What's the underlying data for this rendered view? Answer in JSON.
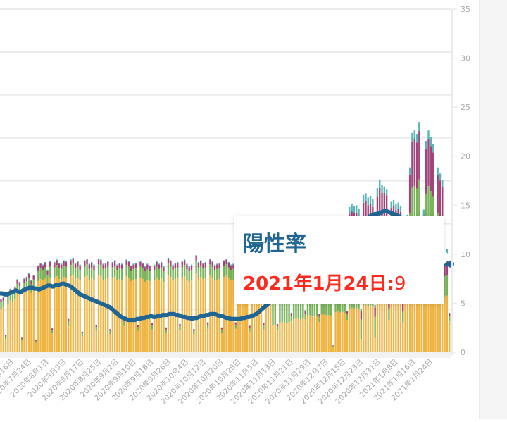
{
  "chart_data": {
    "type": "bar+line",
    "title": "",
    "xlabel": "",
    "ylabel_right": "",
    "right_axis": {
      "ticks": [
        0,
        5,
        10,
        15,
        20,
        25,
        30,
        35
      ],
      "ylim": [
        0,
        35
      ]
    },
    "colors": {
      "bar_series": [
        "#f0b443",
        "#7ab35a",
        "#a0457a",
        "#58b5b8"
      ],
      "line": "#1f6694",
      "grid": "#ebebeb",
      "axis_text": "#aaaaaa"
    },
    "x_start": "2020-07-12",
    "x_end": "2021-01-24",
    "x_tick_labels": [
      "2020年7月16日",
      "2020年7月24日",
      "2020年8月1日",
      "2020年8月9日",
      "2020年8月17日",
      "2020年8月25日",
      "2020年9月2日",
      "2020年9月10日",
      "2020年9月18日",
      "2020年9月26日",
      "2020年10月4日",
      "2020年10月12日",
      "2020年10月20日",
      "2020年10月28日",
      "2020年11月5日",
      "2020年11月13日",
      "2020年11月21日",
      "2020年11月29日",
      "2020年12月7日",
      "2020年12月15日",
      "2020年12月23日",
      "2020年12月31日",
      "2021年1月8日",
      "2021年1月16日",
      "2021年1月24日"
    ],
    "bar_totals_relative": [
      6.2,
      6.4,
      2.0,
      6.8,
      7.4,
      7.2,
      7.6,
      8.5,
      8.2,
      1.7,
      8.6,
      8.8,
      9.2,
      8.4,
      9.0,
      1.4,
      10.1,
      10.4,
      10.2,
      10.5,
      9.6,
      10.6,
      2.8,
      10.5,
      10.8,
      10.4,
      10.3,
      10.7,
      10.6,
      3.9,
      10.8,
      11.0,
      10.4,
      10.6,
      10.2,
      2.4,
      10.7,
      10.9,
      10.3,
      10.5,
      10.2,
      3.2,
      10.9,
      10.8,
      10.3,
      10.4,
      10.6,
      2.7,
      10.5,
      10.7,
      10.2,
      10.4,
      10.3,
      3.9,
      10.8,
      10.6,
      10.1,
      10.3,
      10.4,
      3.2,
      10.6,
      10.4,
      10.0,
      10.3,
      10.1,
      3.4,
      10.2,
      10.6,
      10.3,
      10.5,
      10.0,
      2.9,
      11.0,
      10.7,
      10.2,
      10.4,
      10.5,
      3.3,
      10.6,
      10.8,
      10.3,
      10.0,
      10.2,
      2.7,
      11.3,
      10.5,
      10.7,
      10.4,
      10.5,
      3.5,
      10.9,
      10.6,
      10.2,
      10.3,
      10.4,
      2.9,
      10.7,
      10.9,
      10.5,
      10.2,
      10.3,
      3.5,
      10.5,
      10.6,
      10.2,
      10.4,
      10.1,
      3.1,
      10.4,
      10.5,
      10.2,
      10.0,
      10.3,
      3.4,
      10.8,
      10.6,
      10.2,
      10.5,
      10.4,
      3.3,
      11.4,
      11.8,
      11.6,
      11.2,
      11.7,
      4.6,
      12.8,
      13.2,
      13.0,
      12.6,
      13.4,
      4.9,
      14.1,
      14.4,
      13.9,
      14.2,
      13.8,
      4.5,
      14.6,
      14.9,
      14.3,
      14.4,
      14.2,
      0.8,
      15.5,
      15.9,
      15.4,
      15.6,
      15.2,
      4.8,
      16.9,
      17.3,
      17.0,
      17.1,
      16.7,
      5.1,
      18.3,
      18.5,
      18.0,
      18.2,
      17.8,
      5.5,
      19.1,
      20.1,
      19.5,
      19.3,
      19.0,
      6.8,
      17.5,
      17.7,
      17.2,
      17.4,
      17.0,
      6.3,
      15.5,
      16.0,
      21.5,
      25.5,
      25.8,
      25.4,
      26.8,
      12.0,
      16.6,
      24.6,
      25.8,
      25.0,
      24.2,
      11.5,
      21.5,
      20.8,
      20.0,
      11.8,
      12.0,
      4.6
    ],
    "series": [
      {
        "name": "陽性率",
        "axis": "right",
        "type": "line"
      }
    ],
    "positivity_rate": [
      6.0,
      6.0,
      5.9,
      5.9,
      6.0,
      6.1,
      6.2,
      6.3,
      6.2,
      6.1,
      6.3,
      6.4,
      6.5,
      6.6,
      6.6,
      6.5,
      6.5,
      6.4,
      6.5,
      6.6,
      6.7,
      6.8,
      6.8,
      6.7,
      6.8,
      6.9,
      6.9,
      7.0,
      7.0,
      6.9,
      6.8,
      6.7,
      6.5,
      6.3,
      6.1,
      5.9,
      5.8,
      5.7,
      5.6,
      5.5,
      5.4,
      5.3,
      5.2,
      5.1,
      5.0,
      4.9,
      4.8,
      4.7,
      4.6,
      4.4,
      4.2,
      4.0,
      3.8,
      3.6,
      3.5,
      3.4,
      3.3,
      3.3,
      3.3,
      3.3,
      3.4,
      3.4,
      3.5,
      3.5,
      3.6,
      3.6,
      3.7,
      3.6,
      3.6,
      3.7,
      3.7,
      3.8,
      3.8,
      3.8,
      3.9,
      3.9,
      3.9,
      3.8,
      3.8,
      3.7,
      3.6,
      3.6,
      3.5,
      3.5,
      3.4,
      3.5,
      3.5,
      3.6,
      3.7,
      3.7,
      3.8,
      3.8,
      3.9,
      3.9,
      3.9,
      3.8,
      3.7,
      3.7,
      3.6,
      3.5,
      3.5,
      3.4,
      3.4,
      3.4,
      3.4,
      3.4,
      3.5,
      3.5,
      3.6,
      3.6,
      3.7,
      3.8,
      3.9,
      4.1,
      4.3,
      4.5,
      4.7,
      4.9,
      5.1,
      5.3,
      5.5,
      5.7,
      5.9,
      6.1,
      6.3,
      6.5,
      6.7,
      6.9,
      7.1,
      7.3,
      7.5,
      7.7,
      7.9,
      8.1,
      8.3,
      8.5,
      8.7,
      8.9,
      9.1,
      9.3,
      9.5,
      9.7,
      9.9,
      10.1,
      10.3,
      10.5,
      10.7,
      10.9,
      11.1,
      11.3,
      11.5,
      11.7,
      11.9,
      12.1,
      12.3,
      12.5,
      12.7,
      12.9,
      13.1,
      13.3,
      13.5,
      13.7,
      13.9,
      14.0,
      14.1,
      14.1,
      14.2,
      14.3,
      14.4,
      14.4,
      14.3,
      14.2,
      14.1,
      14.0,
      13.9,
      13.8,
      13.6,
      13.3,
      13.0,
      12.6,
      12.2,
      11.8,
      11.3,
      10.8,
      10.3,
      9.8,
      9.4,
      9.2,
      9.0,
      9.0,
      9.0,
      9.0,
      9.0,
      9.0,
      9.0,
      9.0,
      9.0,
      9.0
    ],
    "grid": true,
    "legend": "none"
  },
  "tooltip": {
    "title": "陽性率",
    "date": "2021年1月24日:",
    "value": "9"
  }
}
